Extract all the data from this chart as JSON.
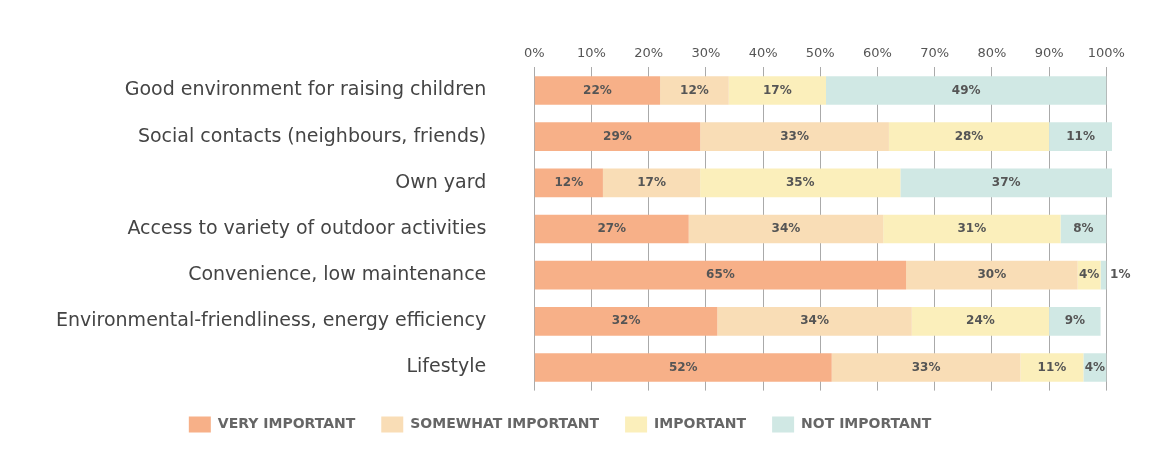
{
  "chart_data": {
    "type": "bar",
    "orientation": "horizontal",
    "stacked": true,
    "categories": [
      "Good environment for raising children",
      "Social contacts (neighbours, friends)",
      "Own yard",
      "Access to variety of outdoor activities",
      "Convenience, low maintenance",
      "Environmental-friendliness, energy efficiency",
      "Lifestyle"
    ],
    "series": [
      {
        "name": "VERY IMPORTANT",
        "color": "#f7b088",
        "values": [
          22,
          29,
          12,
          27,
          65,
          32,
          52
        ],
        "value_labels": [
          "22%",
          "29%",
          "12%",
          "27%",
          "65%",
          "32%",
          "52%"
        ]
      },
      {
        "name": "SOMEWHAT IMPORTANT",
        "color": "#f9ddb6",
        "values": [
          12,
          33,
          17,
          34,
          30,
          34,
          33
        ],
        "value_labels": [
          "12%",
          "33%",
          "17%",
          "34%",
          "30%",
          "34%",
          "33%"
        ]
      },
      {
        "name": "IMPORTANT",
        "color": "#fbefbb",
        "values": [
          17,
          28,
          35,
          31,
          4,
          24,
          11
        ],
        "value_labels": [
          "17%",
          "28%",
          "35%",
          "31%",
          "4%",
          "24%",
          "11%"
        ]
      },
      {
        "name": "NOT IMPORTANT",
        "color": "#d0e8e4",
        "values": [
          49,
          11,
          37,
          8,
          1,
          9,
          4
        ],
        "value_labels": [
          "49%",
          "11%",
          "37%",
          "8%",
          "1%",
          "9%",
          "4%"
        ]
      }
    ],
    "xlim": [
      0,
      101
    ],
    "xticks": [
      {
        "value": 0,
        "label": "0%"
      },
      {
        "value": 10,
        "label": "10%"
      },
      {
        "value": 20,
        "label": "20%"
      },
      {
        "value": 30,
        "label": "30%"
      },
      {
        "value": 40,
        "label": "40%"
      },
      {
        "value": 50,
        "label": "50%"
      },
      {
        "value": 60,
        "label": "60%"
      },
      {
        "value": 70,
        "label": "70%"
      },
      {
        "value": 80,
        "label": "80%"
      },
      {
        "value": 90,
        "label": "90%"
      },
      {
        "value": 100,
        "label": "100%"
      }
    ],
    "grid": "x",
    "legend": "bottom"
  }
}
